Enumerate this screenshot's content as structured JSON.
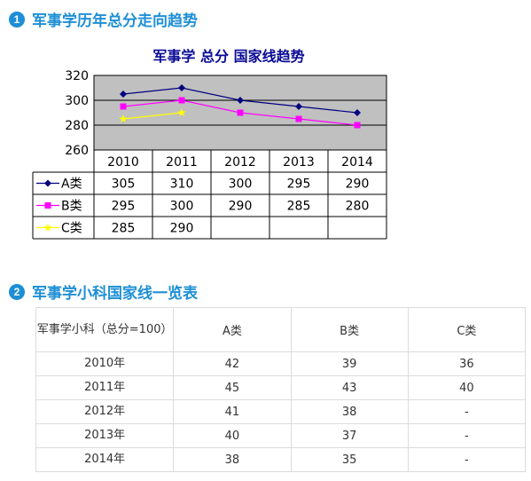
{
  "section1": {
    "number": "1",
    "title": "军事学历年总分走向趋势"
  },
  "section2": {
    "number": "2",
    "title": "军事学小科国家线一览表"
  },
  "chart_data": {
    "type": "line",
    "title": "军事学  总分  国家线趋势",
    "categories": [
      "2010",
      "2011",
      "2012",
      "2013",
      "2014"
    ],
    "ylim": [
      260,
      320
    ],
    "yticks": [
      260,
      280,
      300,
      320
    ],
    "grid": true,
    "legend": "table-left",
    "series": [
      {
        "name": "A类",
        "color": "#000080",
        "marker": "diamond",
        "values": [
          305,
          310,
          300,
          295,
          290
        ],
        "labels": [
          "305",
          "310",
          "300",
          "295",
          "290"
        ]
      },
      {
        "name": "B类",
        "color": "#ff00ff",
        "marker": "square",
        "values": [
          295,
          300,
          290,
          285,
          280
        ],
        "labels": [
          "295",
          "300",
          "290",
          "285",
          "280"
        ]
      },
      {
        "name": "C类",
        "color": "#ffff00",
        "marker": "star",
        "values": [
          285,
          290,
          null,
          null,
          null
        ],
        "labels": [
          "285",
          "290",
          "",
          "",
          ""
        ]
      }
    ]
  },
  "subject_table": {
    "header": [
      "军事学小科（总分=100）",
      "A类",
      "B类",
      "C类"
    ],
    "rows": [
      [
        "2010年",
        "42",
        "39",
        "36"
      ],
      [
        "2011年",
        "45",
        "43",
        "40"
      ],
      [
        "2012年",
        "41",
        "38",
        "-"
      ],
      [
        "2013年",
        "40",
        "37",
        "-"
      ],
      [
        "2014年",
        "38",
        "35",
        "-"
      ]
    ]
  }
}
